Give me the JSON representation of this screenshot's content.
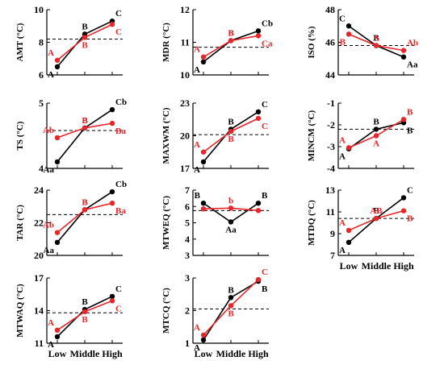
{
  "colors": {
    "series_black": "#000000",
    "series_red": "#e8262a",
    "reference_line": "#000000"
  },
  "x_categories": [
    "Low",
    "Middle",
    "High"
  ],
  "chart_data": [
    {
      "type": "line",
      "ylabel": "AMT (°C)",
      "yticks": [
        6,
        8,
        10
      ],
      "ylim": [
        6,
        10
      ],
      "ref": 8.2,
      "series": [
        {
          "color": "black",
          "values": [
            6.5,
            8.5,
            9.3
          ],
          "labels": [
            "A",
            "B",
            "C"
          ]
        },
        {
          "color": "red",
          "values": [
            6.9,
            8.3,
            9.1
          ],
          "labels": [
            "A",
            "B",
            "C"
          ]
        }
      ]
    },
    {
      "type": "line",
      "ylabel": "MDR (°C)",
      "yticks": [
        10,
        11,
        12
      ],
      "ylim": [
        10,
        12
      ],
      "ref": 10.85,
      "series": [
        {
          "color": "black",
          "values": [
            10.4,
            11.05,
            11.35
          ],
          "labels": [
            "A",
            "B",
            "Cb"
          ]
        },
        {
          "color": "red",
          "values": [
            10.55,
            11.05,
            11.2
          ],
          "labels": [
            "A",
            "B",
            "Ca"
          ]
        }
      ]
    },
    {
      "type": "line",
      "ylabel": "ISO (%)",
      "yticks": [
        44,
        46,
        48
      ],
      "ylim": [
        44,
        48
      ],
      "ref": 45.8,
      "series": [
        {
          "color": "black",
          "values": [
            47.0,
            45.8,
            45.1
          ],
          "labels": [
            "C",
            "B",
            "Aa"
          ]
        },
        {
          "color": "red",
          "values": [
            46.5,
            45.8,
            45.5
          ],
          "labels": [
            "B",
            "A",
            "Ab"
          ]
        }
      ]
    },
    {
      "type": "line",
      "ylabel": "TS (°C)",
      "yticks": [
        4,
        5
      ],
      "ylim": [
        4,
        5
      ],
      "ref": 4.58,
      "series": [
        {
          "color": "black",
          "values": [
            4.1,
            4.62,
            4.9
          ],
          "labels": [
            "Aa",
            "B",
            "Cb"
          ]
        },
        {
          "color": "red",
          "values": [
            4.47,
            4.62,
            4.69
          ],
          "labels": [
            "Ab",
            "B",
            "Ba"
          ]
        }
      ]
    },
    {
      "type": "line",
      "ylabel": "MAXWM (°C)",
      "yticks": [
        17,
        20,
        23
      ],
      "ylim": [
        17,
        23
      ],
      "ref": 20.1,
      "series": [
        {
          "color": "black",
          "values": [
            17.6,
            20.6,
            22.2
          ],
          "labels": [
            "A",
            "B",
            "C"
          ]
        },
        {
          "color": "red",
          "values": [
            18.5,
            20.4,
            21.6
          ],
          "labels": [
            "A",
            "B",
            "C"
          ]
        }
      ]
    },
    {
      "type": "line",
      "ylabel": "MINCM (°C)",
      "yticks": [
        -4,
        -3,
        -2,
        -1
      ],
      "ylim": [
        -4,
        -1
      ],
      "ref": -2.2,
      "series": [
        {
          "color": "black",
          "values": [
            -3.1,
            -2.2,
            -1.9
          ],
          "labels": [
            "A",
            "B",
            "B"
          ]
        },
        {
          "color": "red",
          "values": [
            -3.05,
            -2.5,
            -1.75
          ],
          "labels": [
            "A",
            "A",
            "B"
          ]
        }
      ]
    },
    {
      "type": "line",
      "ylabel": "TAR (°C)",
      "yticks": [
        20,
        22,
        24
      ],
      "ylim": [
        20,
        24
      ],
      "ref": 22.5,
      "series": [
        {
          "color": "black",
          "values": [
            20.8,
            22.8,
            23.9
          ],
          "labels": [
            "Aa",
            "B",
            "Cb"
          ]
        },
        {
          "color": "red",
          "values": [
            21.4,
            22.8,
            23.2
          ],
          "labels": [
            "Ab",
            "B",
            "Ba"
          ]
        }
      ]
    },
    {
      "type": "line",
      "ylabel": "MTWEQ (°C)",
      "yticks": [
        3,
        4,
        5,
        6,
        7
      ],
      "ylim": [
        3,
        7
      ],
      "ref": 5.75,
      "series": [
        {
          "color": "black",
          "values": [
            6.2,
            5.05,
            6.2
          ],
          "labels": [
            "B",
            "Aa",
            "B"
          ]
        },
        {
          "color": "red",
          "values": [
            5.85,
            5.9,
            5.75
          ],
          "labels": [
            "",
            "b",
            ""
          ]
        }
      ]
    },
    {
      "type": "line",
      "ylabel": "MTDQ (°C)",
      "yticks": [
        7,
        9,
        11,
        13
      ],
      "ylim": [
        7,
        13
      ],
      "ref": 10.4,
      "series": [
        {
          "color": "black",
          "values": [
            8.2,
            10.4,
            12.3
          ],
          "labels": [
            "A",
            "B",
            "C"
          ]
        },
        {
          "color": "red",
          "values": [
            9.3,
            10.4,
            11.1
          ],
          "labels": [
            "A",
            "AB",
            "B"
          ]
        }
      ]
    },
    {
      "type": "line",
      "ylabel": "MTWAQ (°C)",
      "yticks": [
        11,
        14,
        17
      ],
      "ylim": [
        11,
        17
      ],
      "ref": 13.8,
      "series": [
        {
          "color": "black",
          "values": [
            11.6,
            14.1,
            15.3
          ],
          "labels": [
            "A",
            "B",
            "C"
          ]
        },
        {
          "color": "red",
          "values": [
            12.2,
            13.9,
            14.9
          ],
          "labels": [
            "A",
            "B",
            "C"
          ]
        }
      ]
    },
    {
      "type": "line",
      "ylabel": "MTCQ (°C)",
      "yticks": [
        1,
        2,
        3
      ],
      "ylim": [
        1,
        3
      ],
      "ref": 2.05,
      "series": [
        {
          "color": "black",
          "values": [
            1.1,
            2.4,
            2.9
          ],
          "labels": [
            "A",
            "B",
            "B"
          ]
        },
        {
          "color": "red",
          "values": [
            1.25,
            2.15,
            2.95
          ],
          "labels": [
            "A",
            "B",
            "C"
          ]
        }
      ]
    }
  ]
}
